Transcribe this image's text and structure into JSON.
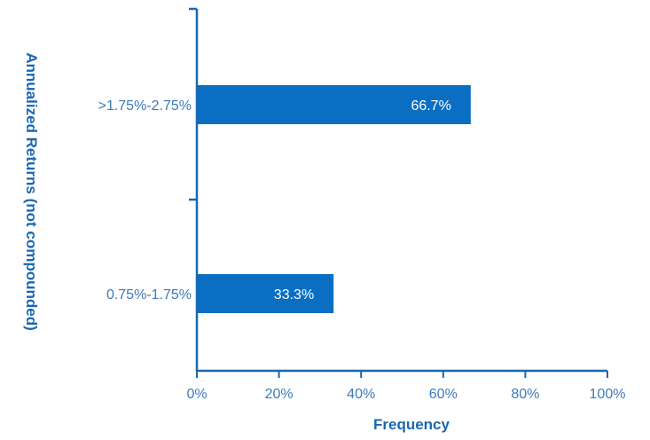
{
  "chart_data": {
    "type": "bar",
    "orientation": "horizontal",
    "categories": [
      ">1.75%-2.75%",
      "0.75%-1.75%"
    ],
    "values": [
      66.7,
      33.3
    ],
    "data_labels": [
      "66.7%",
      "33.3%"
    ],
    "xlabel": "Frequency",
    "ylabel": "Annualized Returns (not compounded)",
    "xlim": [
      0,
      100
    ],
    "x_ticks": [
      "0%",
      "20%",
      "40%",
      "60%",
      "80%",
      "100%"
    ],
    "grid": false,
    "legend": "none",
    "colors": {
      "bar": "#0a6fc2",
      "axis": "#1a67b0",
      "text": "#3d7ab8"
    }
  }
}
